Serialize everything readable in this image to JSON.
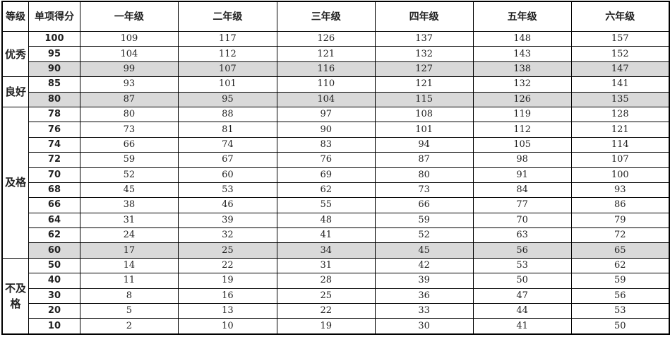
{
  "table": {
    "headers": [
      "等级",
      "单项得分",
      "一年级",
      "二年级",
      "三年级",
      "四年级",
      "五年级",
      "六年级"
    ],
    "highlight_color": "#d9d9d9",
    "levels": [
      {
        "label": "优秀",
        "rows": 3
      },
      {
        "label": "良好",
        "rows": 2
      },
      {
        "label": "及格",
        "rows": 10
      },
      {
        "label": "不及格",
        "rows": 5
      }
    ],
    "rows": [
      {
        "score": "100",
        "values": [
          "109",
          "117",
          "126",
          "137",
          "148",
          "157"
        ],
        "highlight": false
      },
      {
        "score": "95",
        "values": [
          "104",
          "112",
          "121",
          "132",
          "143",
          "152"
        ],
        "highlight": false
      },
      {
        "score": "90",
        "values": [
          "99",
          "107",
          "116",
          "127",
          "138",
          "147"
        ],
        "highlight": true
      },
      {
        "score": "85",
        "values": [
          "93",
          "101",
          "110",
          "121",
          "132",
          "141"
        ],
        "highlight": false
      },
      {
        "score": "80",
        "values": [
          "87",
          "95",
          "104",
          "115",
          "126",
          "135"
        ],
        "highlight": true
      },
      {
        "score": "78",
        "values": [
          "80",
          "88",
          "97",
          "108",
          "119",
          "128"
        ],
        "highlight": false
      },
      {
        "score": "76",
        "values": [
          "73",
          "81",
          "90",
          "101",
          "112",
          "121"
        ],
        "highlight": false
      },
      {
        "score": "74",
        "values": [
          "66",
          "74",
          "83",
          "94",
          "105",
          "114"
        ],
        "highlight": false
      },
      {
        "score": "72",
        "values": [
          "59",
          "67",
          "76",
          "87",
          "98",
          "107"
        ],
        "highlight": false
      },
      {
        "score": "70",
        "values": [
          "52",
          "60",
          "69",
          "80",
          "91",
          "100"
        ],
        "highlight": false
      },
      {
        "score": "68",
        "values": [
          "45",
          "53",
          "62",
          "73",
          "84",
          "93"
        ],
        "highlight": false
      },
      {
        "score": "66",
        "values": [
          "38",
          "46",
          "55",
          "66",
          "77",
          "86"
        ],
        "highlight": false
      },
      {
        "score": "64",
        "values": [
          "31",
          "39",
          "48",
          "59",
          "70",
          "79"
        ],
        "highlight": false
      },
      {
        "score": "62",
        "values": [
          "24",
          "32",
          "41",
          "52",
          "63",
          "72"
        ],
        "highlight": false
      },
      {
        "score": "60",
        "values": [
          "17",
          "25",
          "34",
          "45",
          "56",
          "65"
        ],
        "highlight": true
      },
      {
        "score": "50",
        "values": [
          "14",
          "22",
          "31",
          "42",
          "53",
          "62"
        ],
        "highlight": false
      },
      {
        "score": "40",
        "values": [
          "11",
          "19",
          "28",
          "39",
          "50",
          "59"
        ],
        "highlight": false
      },
      {
        "score": "30",
        "values": [
          "8",
          "16",
          "25",
          "36",
          "47",
          "56"
        ],
        "highlight": false
      },
      {
        "score": "20",
        "values": [
          "5",
          "13",
          "22",
          "33",
          "44",
          "53"
        ],
        "highlight": false
      },
      {
        "score": "10",
        "values": [
          "2",
          "10",
          "19",
          "30",
          "41",
          "50"
        ],
        "highlight": false
      }
    ]
  }
}
